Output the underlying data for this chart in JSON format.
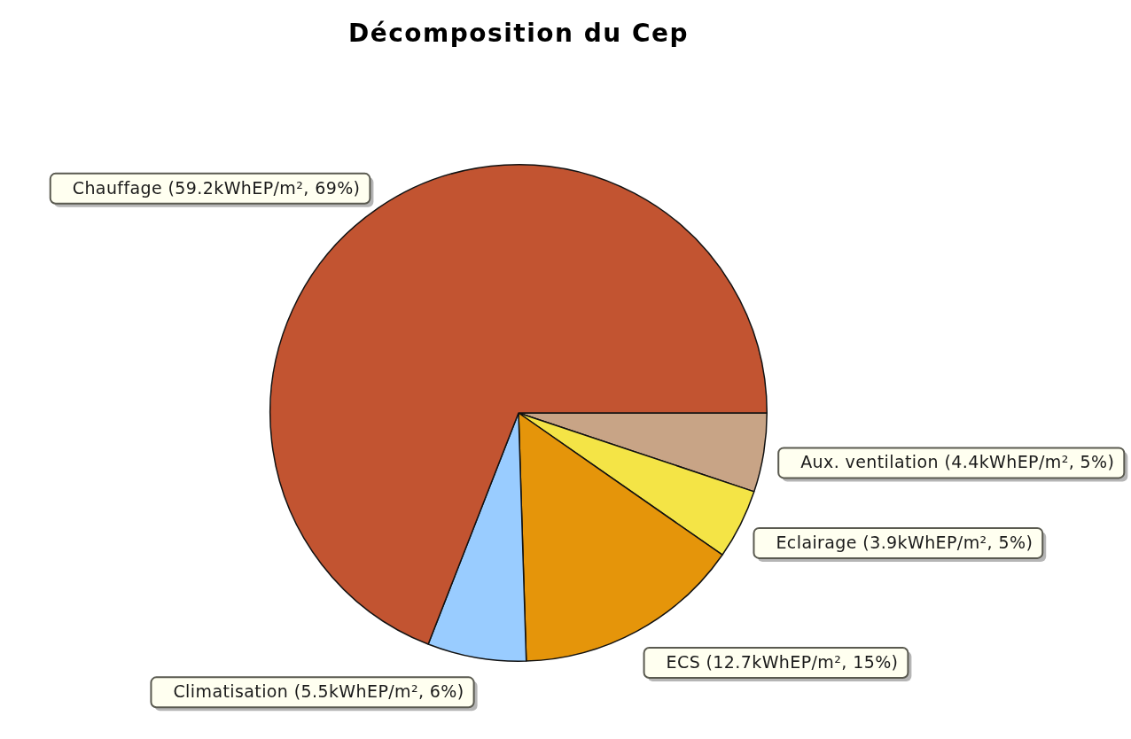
{
  "chart_data": {
    "type": "pie",
    "title": "Décomposition du Cep",
    "categories": [
      "Aux. ventilation (4.4kWhEP/m², 5%)",
      "Eclairage (3.9kWhEP/m², 5%)",
      "ECS (12.7kWhEP/m², 15%)",
      "Climatisation (5.5kWhEP/m², 6%)",
      "Chauffage (59.2kWhEP/m², 69%)"
    ],
    "values": [
      4.4,
      3.9,
      12.7,
      5.5,
      59.2
    ],
    "colors": [
      "#c8a486",
      "#f4e446",
      "#e5950a",
      "#99ccff",
      "#c25431"
    ]
  }
}
